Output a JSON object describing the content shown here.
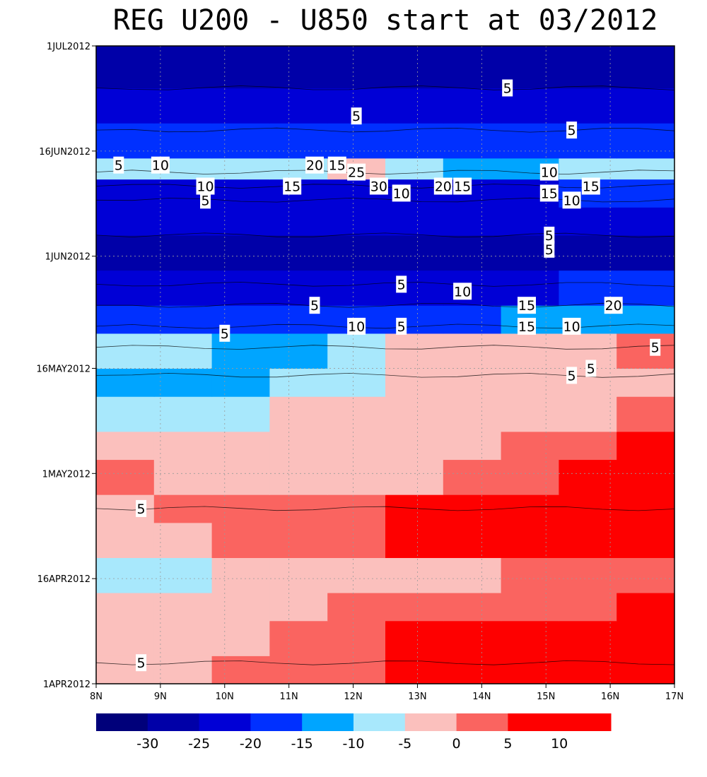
{
  "chart_data": {
    "type": "heatmap",
    "title": "REG U200 - U850 start at 03/2012",
    "x_axis": {
      "ticks": [
        "8N",
        "9N",
        "10N",
        "11N",
        "12N",
        "13N",
        "14N",
        "15N",
        "16N",
        "17N"
      ],
      "range": [
        8,
        17
      ]
    },
    "y_axis": {
      "ticks": [
        "1APR2012",
        "16APR2012",
        "1MAY2012",
        "16MAY2012",
        "1JUN2012",
        "16JUN2012",
        "1JUL2012"
      ],
      "range": [
        "2012-04-01",
        "2012-07-01"
      ]
    },
    "grid": true,
    "colorbar": {
      "position": "bottom",
      "levels": [
        -35,
        -30,
        -25,
        -20,
        -15,
        -10,
        -5,
        0,
        5,
        10,
        15
      ],
      "colors": [
        "#00007a",
        "#0000a8",
        "#0000d6",
        "#0030ff",
        "#00a5ff",
        "#a8e8fc",
        "#fbc0bd",
        "#fa6460",
        "#fe0000",
        "#fe0000"
      ],
      "labels": [
        "-30",
        "-25",
        "-20",
        "-15",
        "-10",
        "-5",
        "0",
        "5",
        "10"
      ]
    },
    "bands": [
      {
        "date": "2012-04-01",
        "values": [
          -5,
          -5,
          0,
          0,
          0,
          5,
          10,
          15,
          15,
          15
        ]
      },
      {
        "date": "2012-04-05",
        "values": [
          -5,
          -5,
          -5,
          0,
          0,
          5,
          5,
          10,
          10,
          15
        ]
      },
      {
        "date": "2012-04-10",
        "values": [
          -5,
          -5,
          -5,
          -5,
          0,
          0,
          0,
          0,
          0,
          5
        ]
      },
      {
        "date": "2012-04-14",
        "values": [
          -10,
          -10,
          -5,
          -5,
          -5,
          -5,
          -5,
          0,
          0,
          0
        ]
      },
      {
        "date": "2012-04-19",
        "values": [
          -5,
          -5,
          0,
          0,
          0,
          5,
          10,
          15,
          15,
          15
        ]
      },
      {
        "date": "2012-04-24",
        "values": [
          -5,
          0,
          0,
          0,
          0,
          5,
          5,
          10,
          10,
          10
        ]
      },
      {
        "date": "2012-04-28",
        "values": [
          0,
          -5,
          -5,
          -5,
          -5,
          -5,
          0,
          0,
          5,
          5
        ]
      },
      {
        "date": "2012-05-03",
        "values": [
          -5,
          -5,
          -5,
          -5,
          -5,
          -5,
          -5,
          0,
          0,
          5
        ]
      },
      {
        "date": "2012-05-07",
        "values": [
          -10,
          -10,
          -10,
          -5,
          -5,
          -5,
          -5,
          -5,
          -5,
          0
        ]
      },
      {
        "date": "2012-05-12",
        "values": [
          -15,
          -15,
          -15,
          -10,
          -10,
          -5,
          -5,
          -5,
          -5,
          -5
        ]
      },
      {
        "date": "2012-05-16",
        "values": [
          -10,
          -10,
          -15,
          -15,
          -10,
          -5,
          -5,
          -5,
          -5,
          0
        ]
      },
      {
        "date": "2012-05-21",
        "values": [
          -20,
          -20,
          -20,
          -20,
          -20,
          -20,
          -20,
          -15,
          -15,
          -15
        ]
      },
      {
        "date": "2012-05-25",
        "values": [
          -25,
          -25,
          -25,
          -25,
          -25,
          -25,
          -25,
          -25,
          -20,
          -20
        ]
      },
      {
        "date": "2012-05-30",
        "values": [
          -30,
          -30,
          -30,
          -30,
          -30,
          -30,
          -30,
          -30,
          -30,
          -30
        ]
      },
      {
        "date": "2012-06-04",
        "values": [
          -25,
          -25,
          -25,
          -25,
          -25,
          -25,
          -25,
          -25,
          -25,
          -25
        ]
      },
      {
        "date": "2012-06-08",
        "values": [
          -25,
          -25,
          -25,
          -25,
          -25,
          -25,
          -25,
          -25,
          -20,
          -20
        ]
      },
      {
        "date": "2012-06-12",
        "values": [
          -10,
          -10,
          -10,
          -10,
          -5,
          -10,
          -15,
          -15,
          -10,
          -10
        ]
      },
      {
        "date": "2012-06-15",
        "values": [
          -20,
          -20,
          -20,
          -20,
          -20,
          -20,
          -20,
          -20,
          -20,
          -20
        ]
      },
      {
        "date": "2012-06-20",
        "values": [
          -25,
          -25,
          -25,
          -25,
          -25,
          -25,
          -25,
          -25,
          -25,
          -25
        ]
      },
      {
        "date": "2012-06-25",
        "values": [
          -30,
          -30,
          -30,
          -30,
          -30,
          -30,
          -30,
          -30,
          -30,
          -30
        ]
      }
    ],
    "contour_labels": [
      "5",
      "10",
      "15",
      "20",
      "25",
      "30",
      "5",
      "10",
      "15",
      "5"
    ],
    "contour_label_positions": [
      {
        "lat": 8.35,
        "date": "2012-06-14",
        "text": "5"
      },
      {
        "lat": 9.0,
        "date": "2012-06-14",
        "text": "10"
      },
      {
        "lat": 9.7,
        "date": "2012-06-11",
        "text": "10"
      },
      {
        "lat": 9.7,
        "date": "2012-06-09",
        "text": "5"
      },
      {
        "lat": 11.05,
        "date": "2012-06-11",
        "text": "15"
      },
      {
        "lat": 11.4,
        "date": "2012-06-14",
        "text": "20"
      },
      {
        "lat": 11.75,
        "date": "2012-06-14",
        "text": "15"
      },
      {
        "lat": 12.05,
        "date": "2012-06-13",
        "text": "25"
      },
      {
        "lat": 12.4,
        "date": "2012-06-11",
        "text": "30"
      },
      {
        "lat": 12.75,
        "date": "2012-06-10",
        "text": "10"
      },
      {
        "lat": 13.4,
        "date": "2012-06-11",
        "text": "20"
      },
      {
        "lat": 13.7,
        "date": "2012-06-11",
        "text": "15"
      },
      {
        "lat": 15.05,
        "date": "2012-06-13",
        "text": "10"
      },
      {
        "lat": 15.05,
        "date": "2012-06-10",
        "text": "15"
      },
      {
        "lat": 15.7,
        "date": "2012-06-11",
        "text": "15"
      },
      {
        "lat": 15.4,
        "date": "2012-06-09",
        "text": "10"
      },
      {
        "lat": 12.05,
        "date": "2012-06-21",
        "text": "5"
      },
      {
        "lat": 14.4,
        "date": "2012-06-25",
        "text": "5"
      },
      {
        "lat": 15.4,
        "date": "2012-06-19",
        "text": "5"
      },
      {
        "lat": 15.05,
        "date": "2012-06-04",
        "text": "5"
      },
      {
        "lat": 15.05,
        "date": "2012-06-02",
        "text": "5"
      },
      {
        "lat": 12.75,
        "date": "2012-05-28",
        "text": "5"
      },
      {
        "lat": 13.7,
        "date": "2012-05-27",
        "text": "10"
      },
      {
        "lat": 11.4,
        "date": "2012-05-25",
        "text": "5"
      },
      {
        "lat": 14.7,
        "date": "2012-05-25",
        "text": "15"
      },
      {
        "lat": 14.7,
        "date": "2012-05-22",
        "text": "15"
      },
      {
        "lat": 16.05,
        "date": "2012-05-25",
        "text": "20"
      },
      {
        "lat": 12.05,
        "date": "2012-05-22",
        "text": "10"
      },
      {
        "lat": 12.75,
        "date": "2012-05-22",
        "text": "5"
      },
      {
        "lat": 15.4,
        "date": "2012-05-22",
        "text": "10"
      },
      {
        "lat": 10.0,
        "date": "2012-05-21",
        "text": "5"
      },
      {
        "lat": 16.7,
        "date": "2012-05-19",
        "text": "5"
      },
      {
        "lat": 15.7,
        "date": "2012-05-16",
        "text": "5"
      },
      {
        "lat": 15.4,
        "date": "2012-05-15",
        "text": "5"
      },
      {
        "lat": 8.7,
        "date": "2012-04-26",
        "text": "5"
      },
      {
        "lat": 8.7,
        "date": "2012-04-04",
        "text": "5"
      }
    ]
  }
}
